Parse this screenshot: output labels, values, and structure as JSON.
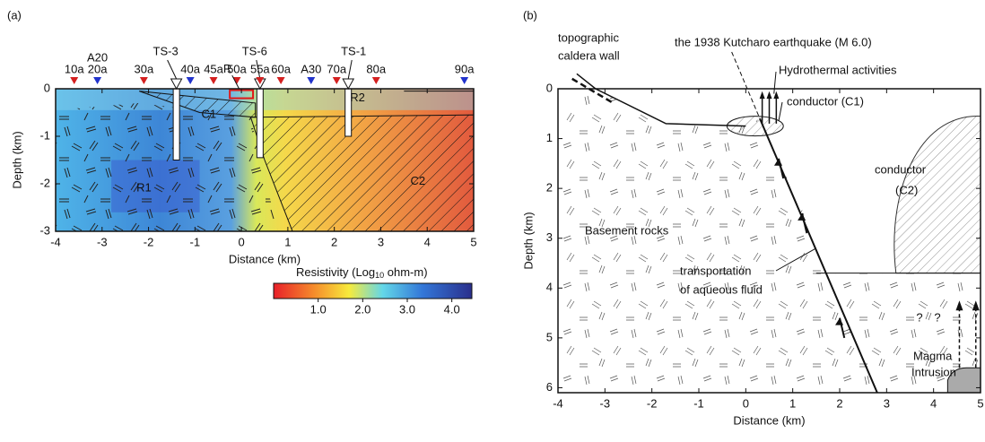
{
  "panels": [
    {
      "label": "(a)",
      "x_label": "Distance (km)",
      "y_label": "Depth (km)",
      "xlim": [
        -4,
        5
      ],
      "ylim": [
        -3,
        0
      ],
      "xticks": [
        -4,
        -3,
        -2,
        -1,
        0,
        1,
        2,
        3,
        4,
        5
      ],
      "yticks": [
        0,
        -1,
        -2,
        -3
      ],
      "stations": [
        {
          "label": "10a",
          "x": -3.6,
          "label_color": "#d42020",
          "marker_color": "#d42020"
        },
        {
          "label": "20a",
          "x": -3.1,
          "label_color": "#d42020",
          "marker_color": "#2233cc"
        },
        {
          "label": "30a",
          "x": -2.1,
          "label_color": "#d42020",
          "marker_color": "#d42020"
        },
        {
          "label": "40a",
          "x": -1.1,
          "label_color": "#d42020",
          "marker_color": "#2233cc"
        },
        {
          "label": "45a",
          "x": -0.6,
          "label_color": "#d42020",
          "marker_color": "#d42020"
        },
        {
          "label": "50a",
          "x": -0.1,
          "label_color": "#d42020",
          "marker_color": "#d42020"
        },
        {
          "label": "55a",
          "x": 0.4,
          "label_color": "#d42020",
          "marker_color": "#d42020"
        },
        {
          "label": "60a",
          "x": 0.85,
          "label_color": "#d42020",
          "marker_color": "#d42020"
        },
        {
          "label": "A30",
          "x": 1.5,
          "label_color": "#2233cc",
          "marker_color": "#2233cc"
        },
        {
          "label": "70a",
          "x": 2.05,
          "label_color": "#d42020",
          "marker_color": "#d42020"
        },
        {
          "label": "80a",
          "x": 2.9,
          "label_color": "#d42020",
          "marker_color": "#d42020"
        },
        {
          "label": "90a",
          "x": 4.8,
          "label_color": "#d42020",
          "marker_color": "#2233cc"
        }
      ],
      "upper_labels": [
        {
          "label": "A20",
          "x": -3.1
        }
      ],
      "wells": [
        {
          "label": "TS-3",
          "x": -1.4,
          "depth": -1.5
        },
        {
          "label": "TS-6",
          "x": 0.4,
          "depth": -1.45
        },
        {
          "label": "TS-1",
          "x": 2.3,
          "depth": -1.0
        }
      ],
      "regions": [
        {
          "label": "R",
          "x": -0.3,
          "y": 0.4
        },
        {
          "label": "C1",
          "x": -0.7,
          "y": -0.55
        },
        {
          "label": "R2",
          "x": 2.5,
          "y": -0.2
        },
        {
          "label": "R1",
          "x": -2.1,
          "y": -2.1
        },
        {
          "label": "C2",
          "x": 3.8,
          "y": -1.95
        }
      ],
      "colorbar": {
        "title": "Resistivity (Log",
        "title_sub": "10",
        "title_end": " ohm-m)",
        "lim": [
          0,
          4.45
        ],
        "ticks": [
          {
            "value": 1,
            "label": "1.0"
          },
          {
            "value": 2,
            "label": "2.0"
          },
          {
            "value": 3,
            "label": "3.0"
          },
          {
            "value": 4,
            "label": "4.0"
          }
        ]
      }
    },
    {
      "label": "(b)",
      "x_label": "Distance (km)",
      "y_label": "Depth (km)",
      "xlim": [
        -4,
        5
      ],
      "ylim": [
        6.1,
        0
      ],
      "xticks": [
        -4,
        -3,
        -2,
        -1,
        0,
        1,
        2,
        3,
        4,
        5
      ],
      "yticks": [
        0,
        1,
        2,
        3,
        4,
        5,
        6
      ],
      "annotations": [
        "topographic",
        "caldera wall",
        "the 1938 Kutcharo earthquake (M 6.0)",
        "Hydrothermal activities",
        "conductor (C1)",
        "conductor",
        "(C2)",
        "Basement rocks",
        "transportation",
        "of aqueous fluid",
        "Magma",
        "Intrusion",
        "?",
        "?"
      ]
    }
  ]
}
